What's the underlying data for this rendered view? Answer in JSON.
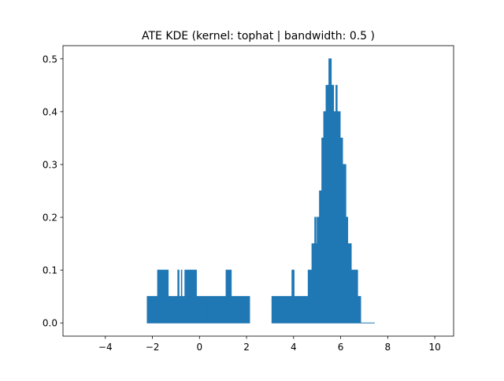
{
  "chart_data": {
    "type": "area",
    "title": "ATE KDE (kernel: tophat | bandwidth: 0.5 )",
    "xlabel": "",
    "ylabel": "",
    "xlim": [
      -5.8,
      10.8
    ],
    "ylim": [
      -0.025,
      0.525
    ],
    "xticks": [
      -4,
      -2,
      0,
      2,
      4,
      6,
      8,
      10
    ],
    "xtick_labels": [
      "−4",
      "−2",
      "0",
      "2",
      "4",
      "6",
      "8",
      "10"
    ],
    "yticks": [
      0.0,
      0.1,
      0.2,
      0.3,
      0.4,
      0.5
    ],
    "ytick_labels": [
      "0.0",
      "0.1",
      "0.2",
      "0.3",
      "0.4",
      "0.5"
    ],
    "grid": false,
    "legend": "none",
    "color": "#1f77b4",
    "series": [
      {
        "x": [
          -2.22,
          -2.22,
          -1.78,
          -1.78,
          -1.33,
          -1.33,
          -0.92,
          -0.92,
          -0.87,
          -0.87,
          -0.77,
          -0.77,
          -0.75,
          -0.75,
          -0.62,
          -0.62,
          -0.13,
          -0.13,
          0.29,
          0.29,
          0.31,
          0.31,
          1.13,
          1.13,
          1.35,
          1.35,
          2.13,
          2.13
        ],
        "y": [
          0.0,
          0.05,
          0.05,
          0.1,
          0.1,
          0.05,
          0.05,
          0.1,
          0.1,
          0.05,
          0.05,
          0.1,
          0.1,
          0.05,
          0.05,
          0.1,
          0.1,
          0.05,
          0.05,
          0.0,
          0.0,
          0.05,
          0.05,
          0.1,
          0.1,
          0.05,
          0.05,
          0.0
        ]
      },
      {
        "x": [
          3.08,
          3.08,
          3.93,
          3.93,
          4.02,
          4.02,
          4.62,
          4.62,
          4.78,
          4.78,
          4.9,
          4.9,
          4.95,
          4.95,
          5.0,
          5.0,
          5.1,
          5.1,
          5.2,
          5.2,
          5.28,
          5.28,
          5.38,
          5.38,
          5.5,
          5.5,
          5.6,
          5.6,
          5.7,
          5.7,
          5.8,
          5.8,
          5.85,
          5.85,
          5.98,
          5.98,
          6.08,
          6.08,
          6.22,
          6.22,
          6.3,
          6.3,
          6.45,
          6.45,
          6.72,
          6.72,
          6.85,
          6.85,
          7.45,
          7.45
        ],
        "y": [
          0.0,
          0.05,
          0.05,
          0.1,
          0.1,
          0.05,
          0.05,
          0.1,
          0.1,
          0.15,
          0.15,
          0.2,
          0.2,
          0.15,
          0.15,
          0.2,
          0.2,
          0.25,
          0.25,
          0.35,
          0.35,
          0.4,
          0.4,
          0.45,
          0.45,
          0.5,
          0.5,
          0.45,
          0.45,
          0.4,
          0.4,
          0.45,
          0.45,
          0.4,
          0.4,
          0.35,
          0.35,
          0.3,
          0.3,
          0.2,
          0.2,
          0.15,
          0.15,
          0.1,
          0.1,
          0.05,
          0.05,
          0.0,
          0.0,
          0.0
        ]
      }
    ]
  }
}
